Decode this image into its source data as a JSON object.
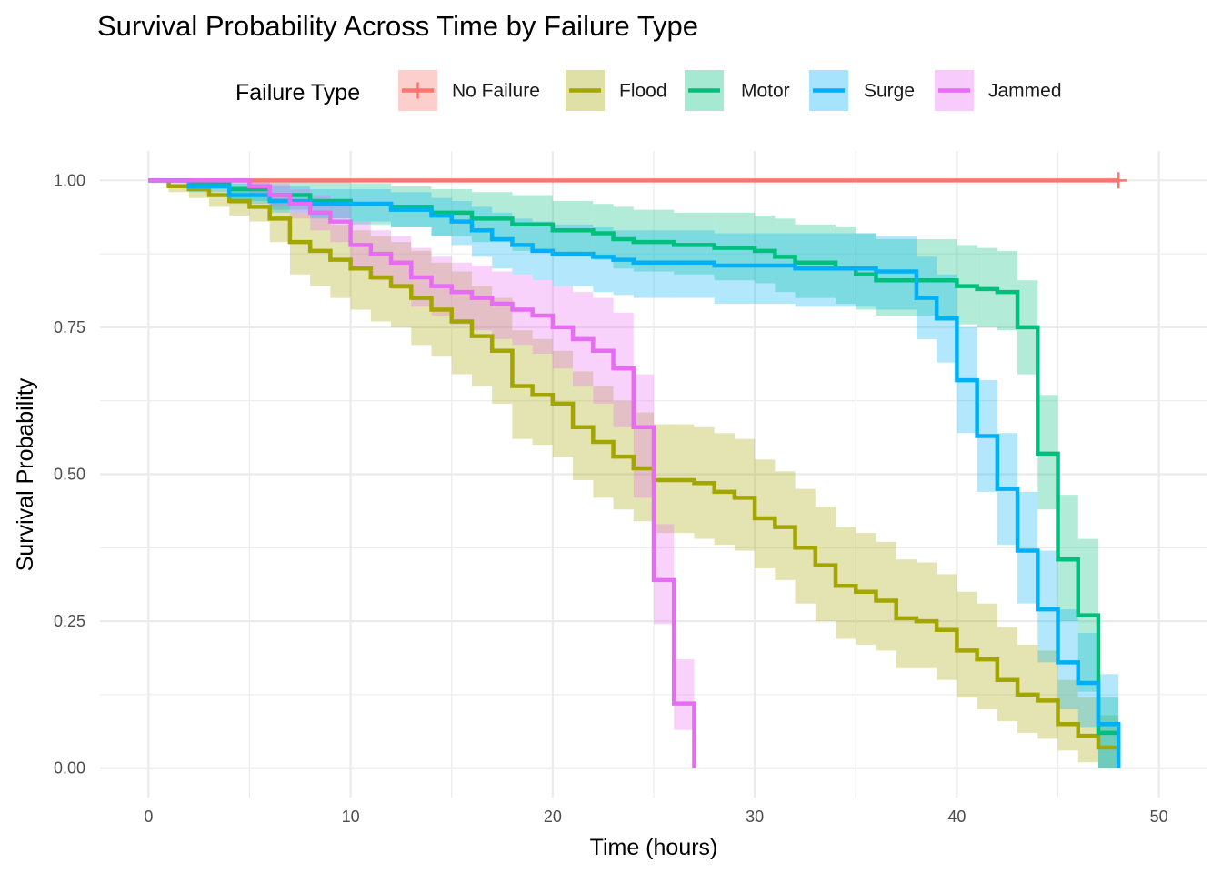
{
  "chart_data": {
    "type": "line",
    "title": "Survival Probability Across Time by Failure Type",
    "xlabel": "Time (hours)",
    "ylabel": "Survival Probability",
    "xlim": [
      -2.4,
      52.4
    ],
    "ylim": [
      -0.05,
      1.05
    ],
    "x_ticks": [
      0,
      10,
      20,
      30,
      40,
      50
    ],
    "x_tick_labels": [
      "0",
      "10",
      "20",
      "30",
      "40",
      "50"
    ],
    "y_ticks": [
      0,
      0.25,
      0.5,
      0.75,
      1.0
    ],
    "y_tick_labels": [
      "0.00",
      "0.25",
      "0.50",
      "0.75",
      "1.00"
    ],
    "grid": true,
    "legend": {
      "title": "Failure Type",
      "position": "top"
    },
    "series": [
      {
        "name": "No Failure",
        "color": "#F8766D",
        "censor_mark_at": [
          48,
          1.0
        ],
        "x": [
          0,
          48
        ],
        "y": [
          1.0,
          1.0
        ]
      },
      {
        "name": "Flood",
        "color": "#A3A500",
        "x": [
          0,
          1,
          2,
          3,
          4,
          5,
          6,
          7,
          8,
          9,
          10,
          11,
          12,
          13,
          14,
          15,
          16,
          17,
          18,
          19,
          20,
          21,
          22,
          23,
          24,
          25,
          26,
          27,
          28,
          29,
          30,
          31,
          32,
          33,
          34,
          35,
          36,
          37,
          38,
          39,
          40,
          41,
          42,
          43,
          44,
          45,
          46,
          47,
          48
        ],
        "y": [
          1.0,
          0.99,
          0.985,
          0.975,
          0.965,
          0.955,
          0.935,
          0.895,
          0.88,
          0.865,
          0.85,
          0.835,
          0.82,
          0.8,
          0.78,
          0.76,
          0.735,
          0.71,
          0.65,
          0.635,
          0.62,
          0.58,
          0.555,
          0.53,
          0.51,
          0.49,
          0.49,
          0.485,
          0.47,
          0.46,
          0.425,
          0.41,
          0.375,
          0.345,
          0.31,
          0.3,
          0.285,
          0.255,
          0.25,
          0.235,
          0.2,
          0.185,
          0.15,
          0.125,
          0.115,
          0.075,
          0.055,
          0.035,
          0.03
        ],
        "lower": [
          1.0,
          0.98,
          0.97,
          0.955,
          0.94,
          0.93,
          0.895,
          0.84,
          0.82,
          0.8,
          0.78,
          0.76,
          0.75,
          0.72,
          0.7,
          0.67,
          0.65,
          0.62,
          0.56,
          0.55,
          0.53,
          0.49,
          0.46,
          0.44,
          0.42,
          0.4,
          0.4,
          0.39,
          0.38,
          0.37,
          0.34,
          0.32,
          0.28,
          0.25,
          0.22,
          0.21,
          0.2,
          0.17,
          0.17,
          0.15,
          0.12,
          0.1,
          0.08,
          0.06,
          0.05,
          0.03,
          0.01,
          0.0,
          0.0
        ],
        "upper": [
          1.0,
          1.0,
          1.0,
          0.995,
          0.99,
          0.985,
          0.97,
          0.945,
          0.935,
          0.925,
          0.915,
          0.905,
          0.895,
          0.88,
          0.86,
          0.845,
          0.82,
          0.8,
          0.745,
          0.73,
          0.71,
          0.675,
          0.65,
          0.625,
          0.605,
          0.585,
          0.585,
          0.58,
          0.57,
          0.56,
          0.525,
          0.505,
          0.475,
          0.445,
          0.41,
          0.4,
          0.385,
          0.355,
          0.35,
          0.33,
          0.3,
          0.28,
          0.24,
          0.21,
          0.2,
          0.15,
          0.12,
          0.09,
          0.08
        ]
      },
      {
        "name": "Motor",
        "color": "#00BF7D",
        "x": [
          0,
          2,
          4,
          6,
          8,
          10,
          12,
          14,
          16,
          18,
          20,
          22,
          23,
          24,
          26,
          28,
          30,
          31,
          32,
          34,
          35,
          36,
          38,
          40,
          41,
          42,
          43,
          44,
          45,
          46,
          47,
          48
        ],
        "y": [
          1.0,
          0.995,
          0.985,
          0.975,
          0.965,
          0.96,
          0.955,
          0.945,
          0.935,
          0.925,
          0.915,
          0.91,
          0.9,
          0.895,
          0.89,
          0.885,
          0.88,
          0.87,
          0.86,
          0.85,
          0.84,
          0.83,
          0.83,
          0.82,
          0.815,
          0.81,
          0.75,
          0.535,
          0.355,
          0.26,
          0.06,
          0.06
        ],
        "lower": [
          1.0,
          0.985,
          0.965,
          0.95,
          0.935,
          0.925,
          0.92,
          0.905,
          0.895,
          0.88,
          0.87,
          0.865,
          0.85,
          0.845,
          0.84,
          0.83,
          0.825,
          0.81,
          0.8,
          0.79,
          0.78,
          0.77,
          0.77,
          0.755,
          0.75,
          0.745,
          0.67,
          0.44,
          0.25,
          0.13,
          0.0,
          0.0
        ],
        "upper": [
          1.0,
          1.0,
          1.0,
          1.0,
          1.0,
          0.995,
          0.99,
          0.985,
          0.98,
          0.975,
          0.965,
          0.96,
          0.955,
          0.95,
          0.945,
          0.945,
          0.94,
          0.935,
          0.925,
          0.92,
          0.91,
          0.9,
          0.9,
          0.89,
          0.885,
          0.88,
          0.83,
          0.635,
          0.465,
          0.39,
          0.12,
          0.12
        ]
      },
      {
        "name": "Surge",
        "color": "#00B0F6",
        "x": [
          0,
          2,
          4,
          6,
          8,
          10,
          12,
          14,
          15,
          16,
          17,
          18,
          19,
          20,
          22,
          23,
          24,
          26,
          28,
          30,
          32,
          34,
          36,
          38,
          39,
          40,
          41,
          42,
          43,
          44,
          45,
          46,
          47,
          48
        ],
        "y": [
          1.0,
          0.99,
          0.975,
          0.965,
          0.96,
          0.96,
          0.95,
          0.94,
          0.93,
          0.915,
          0.9,
          0.89,
          0.88,
          0.875,
          0.87,
          0.865,
          0.86,
          0.86,
          0.855,
          0.855,
          0.85,
          0.85,
          0.845,
          0.8,
          0.765,
          0.66,
          0.565,
          0.475,
          0.37,
          0.27,
          0.18,
          0.145,
          0.075,
          0.0
        ],
        "lower": [
          1.0,
          0.98,
          0.96,
          0.945,
          0.935,
          0.93,
          0.92,
          0.905,
          0.89,
          0.87,
          0.85,
          0.84,
          0.83,
          0.82,
          0.81,
          0.805,
          0.8,
          0.8,
          0.79,
          0.79,
          0.785,
          0.785,
          0.78,
          0.73,
          0.69,
          0.57,
          0.47,
          0.38,
          0.28,
          0.18,
          0.1,
          0.07,
          0.0,
          0.0
        ],
        "upper": [
          1.0,
          1.0,
          0.995,
          0.99,
          0.985,
          0.985,
          0.98,
          0.97,
          0.965,
          0.955,
          0.945,
          0.935,
          0.93,
          0.925,
          0.92,
          0.915,
          0.915,
          0.915,
          0.91,
          0.91,
          0.91,
          0.91,
          0.905,
          0.87,
          0.84,
          0.75,
          0.66,
          0.57,
          0.47,
          0.37,
          0.27,
          0.23,
          0.16,
          0.08
        ]
      },
      {
        "name": "Jammed",
        "color": "#E76BF3",
        "x": [
          0,
          5,
          6,
          7,
          8,
          9,
          10,
          11,
          12,
          13,
          14,
          15,
          16,
          17,
          18,
          19,
          20,
          21,
          22,
          23,
          24,
          25,
          26,
          27
        ],
        "y": [
          1.0,
          0.99,
          0.975,
          0.96,
          0.945,
          0.93,
          0.89,
          0.875,
          0.86,
          0.835,
          0.82,
          0.81,
          0.8,
          0.79,
          0.78,
          0.77,
          0.75,
          0.73,
          0.71,
          0.68,
          0.58,
          0.32,
          0.11,
          0.0
        ],
        "lower": [
          1.0,
          0.975,
          0.955,
          0.935,
          0.915,
          0.895,
          0.85,
          0.83,
          0.815,
          0.785,
          0.77,
          0.755,
          0.745,
          0.73,
          0.72,
          0.705,
          0.68,
          0.65,
          0.62,
          0.58,
          0.46,
          0.245,
          0.065,
          0.0
        ],
        "upper": [
          1.0,
          1.0,
          0.995,
          0.985,
          0.975,
          0.965,
          0.93,
          0.915,
          0.905,
          0.885,
          0.87,
          0.86,
          0.855,
          0.845,
          0.84,
          0.83,
          0.82,
          0.81,
          0.8,
          0.775,
          0.67,
          0.415,
          0.185,
          0.0
        ]
      }
    ]
  }
}
